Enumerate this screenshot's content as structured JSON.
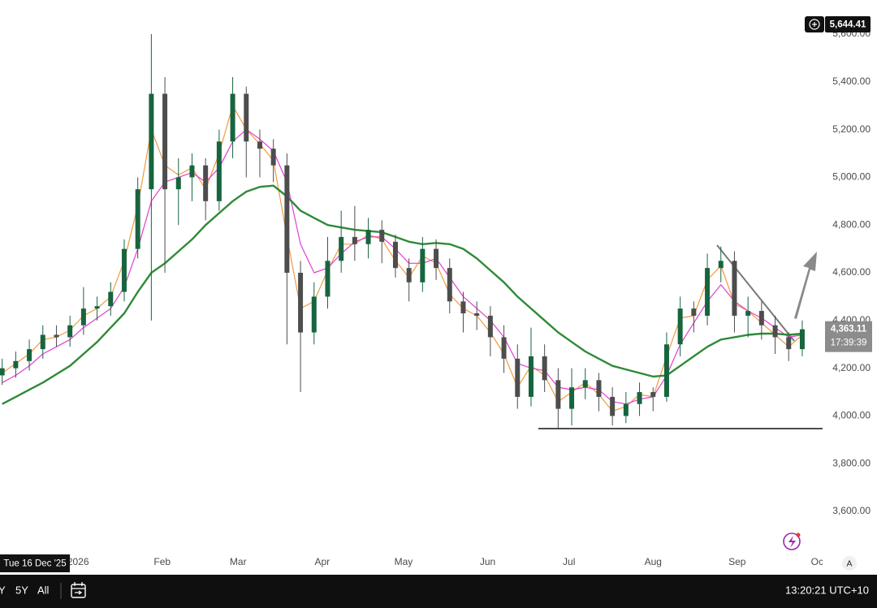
{
  "chart_data": {
    "type": "candlestick",
    "x": [
      -28,
      -23,
      -18,
      -13,
      -8,
      -3,
      2,
      7,
      12,
      17,
      22,
      27,
      32,
      37,
      42,
      47,
      52,
      57,
      62,
      67,
      72,
      77,
      82,
      87,
      92,
      97,
      102,
      107,
      112,
      117,
      122,
      127,
      132,
      137,
      142,
      147,
      152,
      157,
      162,
      167,
      172,
      177,
      182,
      187,
      192,
      197,
      202,
      207,
      212,
      217,
      222,
      227,
      232,
      237,
      242,
      247,
      252,
      257,
      262,
      267
    ],
    "open": [
      4170,
      4200,
      4230,
      4280,
      4340,
      4330,
      4380,
      4450,
      4460,
      4520,
      4700,
      4950,
      5350,
      4950,
      5000,
      5050,
      4900,
      5150,
      5350,
      5150,
      5120,
      5050,
      4600,
      4350,
      4500,
      4650,
      4750,
      4720,
      4780,
      4730,
      4620,
      4560,
      4700,
      4620,
      4480,
      4430,
      4420,
      4330,
      4240,
      4080,
      4250,
      4150,
      4030,
      4120,
      4150,
      4080,
      4000,
      4050,
      4100,
      4080,
      4300,
      4450,
      4420,
      4620,
      4650,
      4420,
      4440,
      4380,
      4330,
      4280
    ],
    "high": [
      4240,
      4270,
      4320,
      4380,
      4380,
      4420,
      4540,
      4500,
      4560,
      4740,
      5000,
      5600,
      5420,
      5080,
      5100,
      5080,
      5200,
      5420,
      5380,
      5200,
      5160,
      5100,
      4650,
      4560,
      4750,
      4860,
      4880,
      4830,
      4820,
      4760,
      4660,
      4750,
      4740,
      4660,
      4520,
      4480,
      4460,
      4380,
      4300,
      4370,
      4300,
      4200,
      4200,
      4200,
      4180,
      4120,
      4100,
      4140,
      4120,
      4350,
      4500,
      4480,
      4680,
      4710,
      4690,
      4500,
      4480,
      4420,
      4350,
      4400
    ],
    "low": [
      4130,
      4160,
      4190,
      4240,
      4290,
      4290,
      4340,
      4400,
      4420,
      4480,
      4660,
      4400,
      4600,
      4800,
      4900,
      4820,
      4860,
      5080,
      5000,
      5000,
      4980,
      4300,
      4100,
      4300,
      4450,
      4600,
      4650,
      4660,
      4640,
      4580,
      4480,
      4520,
      4570,
      4430,
      4350,
      4360,
      4250,
      4180,
      4030,
      4040,
      4100,
      3950,
      3960,
      4070,
      4020,
      3960,
      3970,
      4000,
      4020,
      4060,
      4250,
      4350,
      4380,
      4560,
      4350,
      4330,
      4320,
      4260,
      4230,
      4250
    ],
    "close": [
      4200,
      4230,
      4280,
      4340,
      4330,
      4380,
      4450,
      4460,
      4520,
      4700,
      4950,
      5350,
      4950,
      5000,
      5050,
      4900,
      5150,
      5350,
      5150,
      5120,
      5050,
      4600,
      4350,
      4500,
      4650,
      4750,
      4720,
      4780,
      4730,
      4620,
      4560,
      4700,
      4620,
      4480,
      4430,
      4420,
      4330,
      4240,
      4080,
      4250,
      4150,
      4030,
      4120,
      4150,
      4080,
      4000,
      4050,
      4100,
      4080,
      4300,
      4450,
      4420,
      4620,
      4650,
      4420,
      4440,
      4380,
      4330,
      4280,
      4363.11
    ],
    "up_color": "#17653f",
    "down_color": "#4d4d4d",
    "moving_averages": [
      {
        "color": "#f29a3f",
        "width": 1.2,
        "values": [
          4180,
          4220,
          4260,
          4320,
          4330,
          4360,
          4420,
          4450,
          4500,
          4650,
          4880,
          5200,
          5050,
          5010,
          5040,
          4950,
          5100,
          5300,
          5200,
          5140,
          5070,
          4750,
          4450,
          4480,
          4610,
          4720,
          4720,
          4760,
          4740,
          4650,
          4580,
          4670,
          4640,
          4510,
          4450,
          4420,
          4350,
          4260,
          4120,
          4210,
          4170,
          4060,
          4100,
          4140,
          4090,
          4020,
          4040,
          4090,
          4080,
          4250,
          4410,
          4420,
          4570,
          4630,
          4470,
          4440,
          4390,
          4340,
          4290,
          4340
        ]
      },
      {
        "color": "#e23fd0",
        "width": 1.2,
        "values": [
          4140,
          4170,
          4210,
          4260,
          4290,
          4320,
          4370,
          4410,
          4450,
          4540,
          4700,
          4900,
          4980,
          5000,
          5020,
          4980,
          5040,
          5150,
          5200,
          5160,
          5110,
          4980,
          4720,
          4600,
          4620,
          4680,
          4730,
          4750,
          4750,
          4700,
          4640,
          4640,
          4660,
          4580,
          4500,
          4450,
          4400,
          4330,
          4220,
          4200,
          4190,
          4120,
          4110,
          4120,
          4110,
          4060,
          4050,
          4070,
          4080,
          4170,
          4300,
          4390,
          4480,
          4550,
          4480,
          4440,
          4410,
          4370,
          4330,
          4340
        ]
      },
      {
        "color": "#2f8a38",
        "width": 2.4,
        "values": [
          4050,
          4080,
          4110,
          4140,
          4175,
          4210,
          4260,
          4310,
          4370,
          4430,
          4520,
          4600,
          4640,
          4690,
          4740,
          4800,
          4850,
          4900,
          4940,
          4960,
          4965,
          4920,
          4860,
          4830,
          4800,
          4790,
          4780,
          4775,
          4770,
          4750,
          4730,
          4720,
          4725,
          4720,
          4700,
          4660,
          4610,
          4560,
          4500,
          4450,
          4400,
          4350,
          4310,
          4270,
          4240,
          4210,
          4195,
          4180,
          4165,
          4170,
          4210,
          4250,
          4290,
          4320,
          4330,
          4340,
          4345,
          4345,
          4340,
          4345
        ]
      }
    ],
    "xlim": [
      -28.8,
      274.5
    ],
    "xticks": [
      {
        "value": 0,
        "label": "2026"
      },
      {
        "value": 31,
        "label": "Feb"
      },
      {
        "value": 59,
        "label": "Mar"
      },
      {
        "value": 90,
        "label": "Apr"
      },
      {
        "value": 120,
        "label": "May"
      },
      {
        "value": 151,
        "label": "Jun"
      },
      {
        "value": 181,
        "label": "Jul"
      },
      {
        "value": 212,
        "label": "Aug"
      },
      {
        "value": 243,
        "label": "Sep"
      },
      {
        "value": 273,
        "label": "Oct"
      }
    ],
    "ylim": [
      3430,
      5743
    ],
    "yticks": [
      {
        "value": 3600,
        "label": "3,600.00"
      },
      {
        "value": 3800,
        "label": "3,800.00"
      },
      {
        "value": 4000,
        "label": "4,000.00"
      },
      {
        "value": 4200,
        "label": "4,200.00"
      },
      {
        "value": 4400,
        "label": "4,400.00"
      },
      {
        "value": 4600,
        "label": "4,600.00"
      },
      {
        "value": 4800,
        "label": "4,800.00"
      },
      {
        "value": 5000,
        "label": "5,000.00"
      },
      {
        "value": 5200,
        "label": "5,200.00"
      },
      {
        "value": 5400,
        "label": "5,400.00"
      },
      {
        "value": 5600,
        "label": "5,600.00"
      }
    ],
    "grid": false,
    "high_marker": {
      "value": 5644.41,
      "label": "5,644.41"
    },
    "last_price": {
      "value": 4363.11,
      "label": "4,363.11"
    },
    "countdown": "17:39:39",
    "crosshair_date": "Tue 16 Dec '25",
    "axis_button": "A"
  },
  "toolbar": {
    "ranges": [
      "Y",
      "5Y",
      "All"
    ],
    "clock": "13:20:21 UTC+10"
  }
}
